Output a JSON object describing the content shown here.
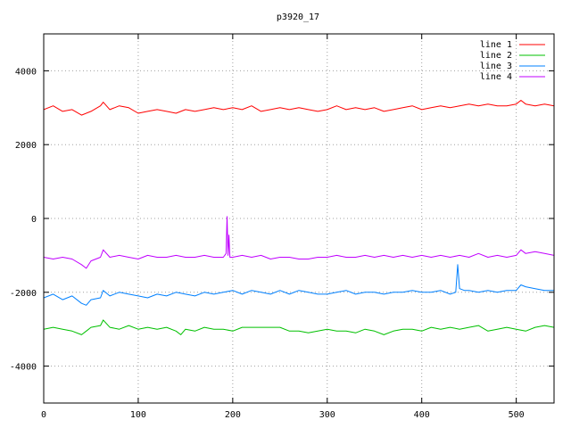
{
  "chart_data": {
    "type": "line",
    "title": "p3920_17",
    "xlim": [
      0,
      540
    ],
    "ylim": [
      -5000,
      5000
    ],
    "x_ticks": [
      0,
      100,
      200,
      300,
      400,
      500
    ],
    "y_ticks": [
      -4000,
      -2000,
      0,
      2000,
      4000
    ],
    "grid": true,
    "legend_position": "top-right",
    "series": [
      {
        "name": "line 1",
        "color": "#ff0000",
        "x": [
          0,
          10,
          20,
          30,
          40,
          50,
          60,
          63,
          70,
          80,
          90,
          100,
          110,
          120,
          130,
          140,
          150,
          160,
          170,
          180,
          190,
          200,
          210,
          220,
          230,
          240,
          250,
          260,
          270,
          280,
          290,
          300,
          310,
          320,
          330,
          340,
          350,
          360,
          370,
          380,
          390,
          400,
          410,
          420,
          430,
          440,
          450,
          460,
          470,
          480,
          490,
          500,
          505,
          510,
          520,
          530,
          540
        ],
        "y": [
          2950,
          3050,
          2900,
          2950,
          2800,
          2900,
          3050,
          3150,
          2950,
          3050,
          3000,
          2850,
          2900,
          2950,
          2900,
          2850,
          2950,
          2900,
          2950,
          3000,
          2950,
          3000,
          2950,
          3050,
          2900,
          2950,
          3000,
          2950,
          3000,
          2950,
          2900,
          2950,
          3050,
          2950,
          3000,
          2950,
          3000,
          2900,
          2950,
          3000,
          3050,
          2950,
          3000,
          3050,
          3000,
          3050,
          3100,
          3050,
          3100,
          3050,
          3050,
          3100,
          3200,
          3100,
          3050,
          3100,
          3050
        ]
      },
      {
        "name": "line 2",
        "color": "#00c000",
        "x": [
          0,
          10,
          20,
          30,
          40,
          45,
          50,
          60,
          63,
          70,
          80,
          90,
          100,
          110,
          120,
          130,
          140,
          145,
          150,
          160,
          170,
          180,
          190,
          200,
          210,
          220,
          230,
          240,
          250,
          260,
          270,
          280,
          290,
          300,
          310,
          320,
          330,
          340,
          350,
          360,
          370,
          380,
          390,
          400,
          410,
          420,
          430,
          440,
          450,
          460,
          470,
          480,
          490,
          500,
          510,
          520,
          530,
          540
        ],
        "y": [
          -3000,
          -2950,
          -3000,
          -3050,
          -3150,
          -3050,
          -2950,
          -2900,
          -2750,
          -2950,
          -3000,
          -2900,
          -3000,
          -2950,
          -3000,
          -2950,
          -3050,
          -3150,
          -3000,
          -3050,
          -2950,
          -3000,
          -3000,
          -3050,
          -2950,
          -2950,
          -2950,
          -2950,
          -2950,
          -3050,
          -3050,
          -3100,
          -3050,
          -3000,
          -3050,
          -3050,
          -3100,
          -3000,
          -3050,
          -3150,
          -3050,
          -3000,
          -3000,
          -3050,
          -2950,
          -3000,
          -2950,
          -3000,
          -2950,
          -2900,
          -3050,
          -3000,
          -2950,
          -3000,
          -3050,
          -2950,
          -2900,
          -2950
        ]
      },
      {
        "name": "line 3",
        "color": "#0080ff",
        "x": [
          0,
          10,
          20,
          30,
          40,
          45,
          50,
          60,
          63,
          70,
          80,
          90,
          100,
          110,
          120,
          130,
          140,
          150,
          160,
          170,
          180,
          190,
          200,
          210,
          220,
          230,
          240,
          250,
          260,
          270,
          280,
          290,
          300,
          310,
          320,
          330,
          340,
          350,
          360,
          370,
          380,
          390,
          400,
          410,
          420,
          430,
          436,
          438,
          440,
          445,
          450,
          460,
          470,
          480,
          490,
          500,
          505,
          510,
          520,
          530,
          540
        ],
        "y": [
          -2150,
          -2050,
          -2200,
          -2100,
          -2300,
          -2350,
          -2200,
          -2150,
          -1950,
          -2100,
          -2000,
          -2050,
          -2100,
          -2150,
          -2050,
          -2100,
          -2000,
          -2050,
          -2100,
          -2000,
          -2050,
          -2000,
          -1950,
          -2050,
          -1950,
          -2000,
          -2050,
          -1950,
          -2050,
          -1950,
          -2000,
          -2050,
          -2050,
          -2000,
          -1950,
          -2050,
          -2000,
          -2000,
          -2050,
          -2000,
          -2000,
          -1950,
          -2000,
          -2000,
          -1950,
          -2050,
          -2000,
          -1250,
          -1900,
          -1950,
          -1950,
          -2000,
          -1950,
          -2000,
          -1950,
          -1950,
          -1800,
          -1850,
          -1900,
          -1950,
          -1950
        ]
      },
      {
        "name": "line 4",
        "color": "#c000ff",
        "x": [
          0,
          10,
          20,
          30,
          40,
          45,
          50,
          60,
          63,
          70,
          80,
          90,
          100,
          110,
          120,
          130,
          140,
          150,
          160,
          170,
          180,
          190,
          193,
          194,
          195,
          196,
          197,
          200,
          210,
          220,
          230,
          240,
          250,
          260,
          270,
          280,
          290,
          300,
          310,
          320,
          330,
          340,
          350,
          360,
          370,
          380,
          390,
          400,
          410,
          420,
          430,
          440,
          450,
          460,
          470,
          480,
          490,
          500,
          505,
          510,
          520,
          530,
          540
        ],
        "y": [
          -1050,
          -1100,
          -1050,
          -1100,
          -1250,
          -1350,
          -1150,
          -1050,
          -850,
          -1050,
          -1000,
          -1050,
          -1100,
          -1000,
          -1050,
          -1050,
          -1000,
          -1050,
          -1050,
          -1000,
          -1050,
          -1050,
          -950,
          50,
          -1000,
          -450,
          -1050,
          -1050,
          -1000,
          -1050,
          -1000,
          -1100,
          -1050,
          -1050,
          -1100,
          -1100,
          -1050,
          -1050,
          -1000,
          -1050,
          -1050,
          -1000,
          -1050,
          -1000,
          -1050,
          -1000,
          -1050,
          -1000,
          -1050,
          -1000,
          -1050,
          -1000,
          -1050,
          -950,
          -1050,
          -1000,
          -1050,
          -1000,
          -850,
          -950,
          -900,
          -950,
          -1000
        ]
      }
    ]
  }
}
